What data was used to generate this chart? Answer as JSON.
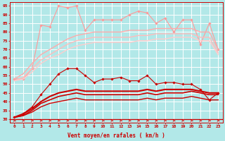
{
  "x": [
    0,
    1,
    2,
    3,
    4,
    5,
    6,
    7,
    8,
    9,
    10,
    11,
    12,
    13,
    14,
    15,
    16,
    17,
    18,
    19,
    20,
    21,
    22,
    23
  ],
  "background_color": "#b2e8e8",
  "grid_color": "#ffffff",
  "xlabel": "Vent moyen/en rafales ( km/h )",
  "xlabel_color": "#cc0000",
  "yticks": [
    30,
    35,
    40,
    45,
    50,
    55,
    60,
    65,
    70,
    75,
    80,
    85,
    90,
    95
  ],
  "ylim": [
    28,
    97
  ],
  "xlim": [
    -0.5,
    23.5
  ],
  "series": [
    {
      "name": "max_rafales",
      "color": "#ff9999",
      "linewidth": 0.8,
      "marker": "D",
      "markersize": 1.8,
      "linestyle": "-",
      "values": [
        53,
        53,
        59,
        84,
        83,
        95,
        94,
        95,
        81,
        87,
        87,
        87,
        87,
        90,
        92,
        91,
        85,
        88,
        80,
        87,
        87,
        73,
        85,
        70
      ]
    },
    {
      "name": "moy_rafales_high",
      "color": "#ffaaaa",
      "linewidth": 1.0,
      "marker": null,
      "markersize": 0,
      "linestyle": "-",
      "values": [
        53,
        56,
        62,
        67,
        70,
        73,
        76,
        78,
        79,
        80,
        80,
        80,
        80,
        81,
        81,
        81,
        82,
        82,
        82,
        82,
        82,
        80,
        80,
        70
      ]
    },
    {
      "name": "moy_rafales_mid",
      "color": "#ffbbbb",
      "linewidth": 1.0,
      "marker": null,
      "markersize": 0,
      "linestyle": "-",
      "values": [
        52,
        54,
        59,
        64,
        67,
        70,
        73,
        75,
        76,
        77,
        77,
        77,
        77,
        77,
        78,
        78,
        79,
        79,
        79,
        79,
        79,
        77,
        77,
        68
      ]
    },
    {
      "name": "moy_rafales_low",
      "color": "#ffcccc",
      "linewidth": 1.0,
      "marker": null,
      "markersize": 0,
      "linestyle": "-",
      "values": [
        52,
        53,
        57,
        62,
        65,
        67,
        70,
        72,
        73,
        74,
        74,
        74,
        74,
        74,
        75,
        75,
        76,
        76,
        77,
        77,
        77,
        75,
        75,
        67
      ]
    },
    {
      "name": "vent_moyen_markers",
      "color": "#cc0000",
      "linewidth": 0.8,
      "marker": "D",
      "markersize": 1.8,
      "linestyle": "-",
      "values": [
        31,
        33,
        37,
        44,
        50,
        56,
        59,
        59,
        55,
        51,
        53,
        53,
        54,
        52,
        52,
        55,
        50,
        51,
        51,
        50,
        50,
        47,
        41,
        45
      ]
    },
    {
      "name": "vent_moyen_trend1",
      "color": "#cc0000",
      "linewidth": 1.5,
      "marker": null,
      "markersize": 0,
      "linestyle": "-",
      "values": [
        31,
        33,
        36,
        40,
        43,
        45,
        46,
        47,
        46,
        46,
        46,
        46,
        46,
        46,
        46,
        47,
        46,
        47,
        47,
        47,
        47,
        46,
        45,
        45
      ]
    },
    {
      "name": "vent_moyen_trend2",
      "color": "#cc0000",
      "linewidth": 1.2,
      "marker": null,
      "markersize": 0,
      "linestyle": "-",
      "values": [
        31,
        32,
        35,
        39,
        41,
        43,
        44,
        45,
        44,
        44,
        44,
        44,
        44,
        44,
        44,
        45,
        44,
        45,
        45,
        45,
        46,
        45,
        44,
        44
      ]
    },
    {
      "name": "vent_moyen_base",
      "color": "#cc0000",
      "linewidth": 1.0,
      "marker": null,
      "markersize": 0,
      "linestyle": "-",
      "values": [
        31,
        32,
        34,
        37,
        39,
        40,
        41,
        42,
        41,
        41,
        41,
        41,
        41,
        41,
        41,
        42,
        41,
        42,
        42,
        42,
        43,
        42,
        41,
        41
      ]
    }
  ],
  "arrow_color": "#cc0000",
  "tick_color": "#cc0000",
  "label_fontsize": 4.5,
  "xlabel_fontsize": 5.5
}
